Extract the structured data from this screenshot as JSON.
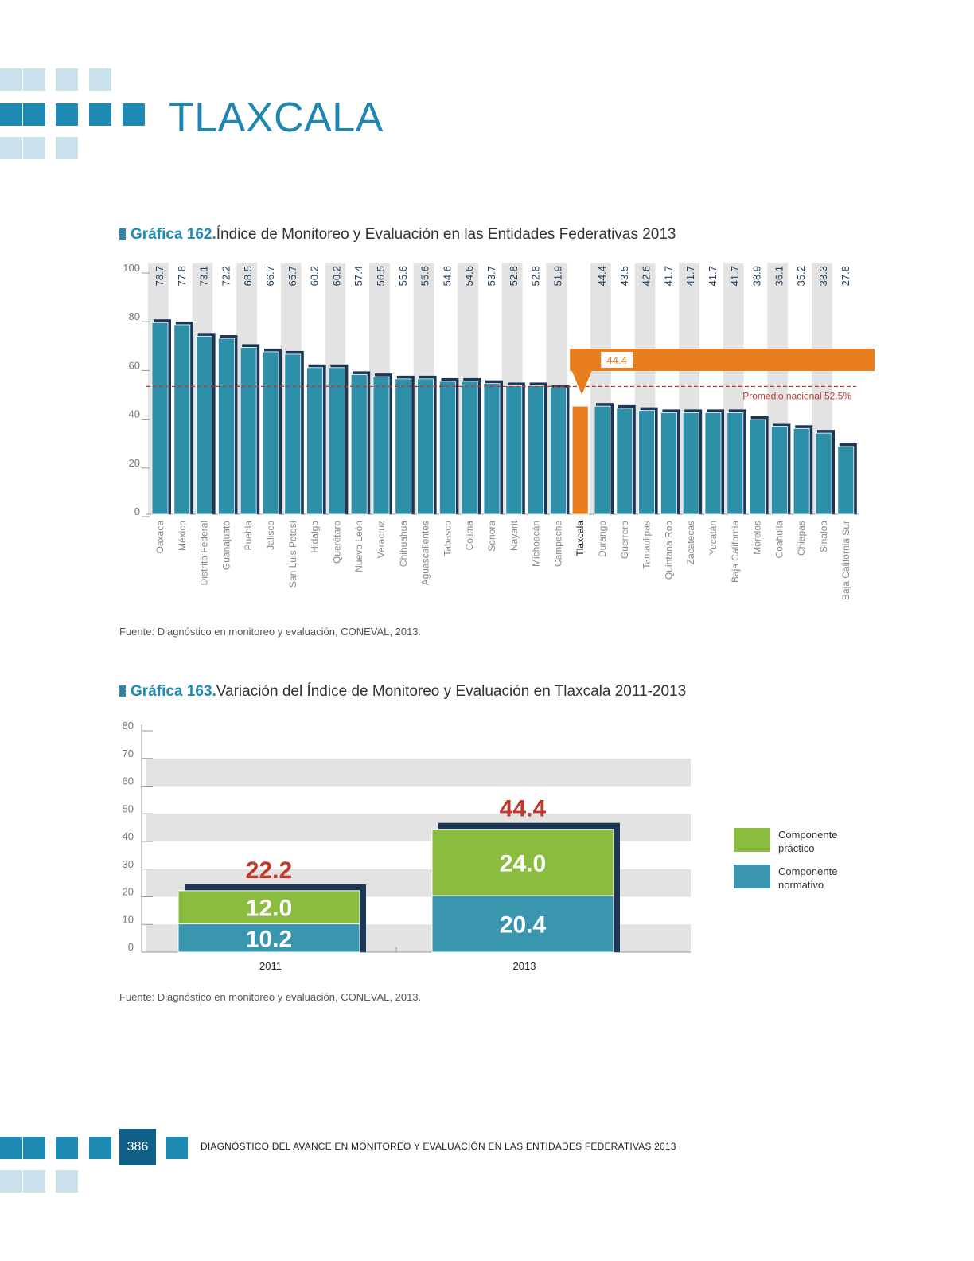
{
  "page": {
    "title": "TLAXCALA",
    "page_number": "386",
    "footer_text": "DIAGNÓSTICO DEL AVANCE EN MONITOREO Y EVALUACIÓN EN LAS ENTIDADES FEDERATIVAS 2013"
  },
  "colors": {
    "bar": "#2e8fa8",
    "bar_shadow": "#1c3656",
    "highlight": "#e87e1e",
    "average_line": "#c0392b",
    "practico": "#8abd3f",
    "normativo": "#3a96ae",
    "total_label": "#c0392b"
  },
  "chart162": {
    "number": "Gráfica 162.",
    "title": "Índice de Monitoreo y Evaluación en las Entidades Federativas 2013",
    "source": "Fuente: Diagnóstico en monitoreo y evaluación, CONEVAL, 2013.",
    "callout": "44.4",
    "average_label": "Promedio nacional 52.5%"
  },
  "chart163": {
    "number": "Gráfica 163.",
    "title": "Variación del Índice de Monitoreo y Evaluación en Tlaxcala 2011-2013",
    "source": "Fuente: Diagnóstico en monitoreo y evaluación, CONEVAL, 2013.",
    "legend": [
      {
        "label_line1": "Componente",
        "label_line2": "práctico",
        "color": "#8abd3f"
      },
      {
        "label_line1": "Componente",
        "label_line2": "normativo",
        "color": "#3a96ae"
      }
    ]
  },
  "chart_data": [
    {
      "type": "bar",
      "categories": [
        "Oaxaca",
        "México",
        "Distrito Federal",
        "Guanajuato",
        "Puebla",
        "Jalisco",
        "San Luis Potosí",
        "Hidalgo",
        "Querétaro",
        "Nuevo León",
        "Veracruz",
        "Chihuahua",
        "Aguascalientes",
        "Tabasco",
        "Colima",
        "Sonora",
        "Nayarit",
        "Michoacán",
        "Campeche",
        "Tlaxcala",
        "Durango",
        "Guerrero",
        "Tamaulipas",
        "Quintana Roo",
        "Zacatecas",
        "Yucatán",
        "Baja California",
        "Morelos",
        "Coahuila",
        "Chiapas",
        "Sinaloa",
        "Baja California Sur"
      ],
      "values": [
        78.7,
        77.8,
        73.1,
        72.2,
        68.5,
        66.7,
        65.7,
        60.2,
        60.2,
        57.4,
        56.5,
        55.6,
        55.6,
        54.6,
        54.6,
        53.7,
        52.8,
        52.8,
        51.9,
        44.4,
        44.4,
        43.5,
        42.6,
        41.7,
        41.7,
        41.7,
        41.7,
        38.9,
        36.1,
        35.2,
        33.3,
        27.8
      ],
      "ylim": [
        0,
        100
      ],
      "yticks": [
        0,
        20,
        40,
        60,
        80,
        100
      ],
      "highlight": "Tlaxcala",
      "average": 52.5
    },
    {
      "type": "bar",
      "stacked": true,
      "categories": [
        "2011",
        "2013"
      ],
      "series": [
        {
          "name": "Componente normativo",
          "values": [
            10.2,
            20.4
          ]
        },
        {
          "name": "Componente práctico",
          "values": [
            12.0,
            24.0
          ]
        }
      ],
      "totals": [
        22.2,
        44.4
      ],
      "ylim": [
        0,
        80
      ],
      "yticks": [
        0,
        10,
        20,
        30,
        40,
        50,
        60,
        70,
        80
      ]
    }
  ]
}
